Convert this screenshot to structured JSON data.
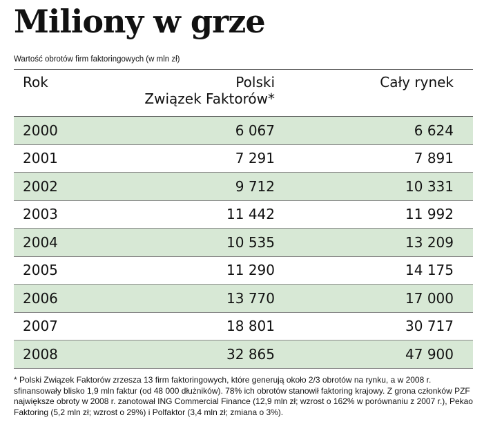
{
  "header": {
    "title": "Miliony w grze",
    "subtitle": "Wartość obrotów firm faktoringowych (w mln zł)"
  },
  "table": {
    "columns": [
      "Rok",
      [
        "Polski",
        "Związek Faktorów*"
      ],
      "Cały rynek"
    ],
    "rows": [
      [
        "2000",
        "6 067",
        "6 624"
      ],
      [
        "2001",
        "7 291",
        "7 891"
      ],
      [
        "2002",
        "9 712",
        "10 331"
      ],
      [
        "2003",
        "11 442",
        "11 992"
      ],
      [
        "2004",
        "10 535",
        "13 209"
      ],
      [
        "2005",
        "11 290",
        "14 175"
      ],
      [
        "2006",
        "13 770",
        "17 000"
      ],
      [
        "2007",
        "18 801",
        "30 717"
      ],
      [
        "2008",
        "32 865",
        "47 900"
      ]
    ]
  },
  "footnote": "* Polski Związek Faktorów zrzesza 13 firm faktoringowych, które generują około 2/3 obrotów na rynku, a w 2008 r. sfinansowały blisko 1,9 mln faktur (od 48 000 dłużników). 78% ich obrotów stanowił faktoring krajowy. Z grona członków PZF największe obroty w 2008 r. zanotował ING Commercial Finance (12,9 mln zł; wzrost o 162% w porównaniu z 2007 r.), Pekao Faktoring (5,2 mln zł; wzrost o 29%) i Polfaktor (3,4 mln zł; zmiana o 3%)."
}
